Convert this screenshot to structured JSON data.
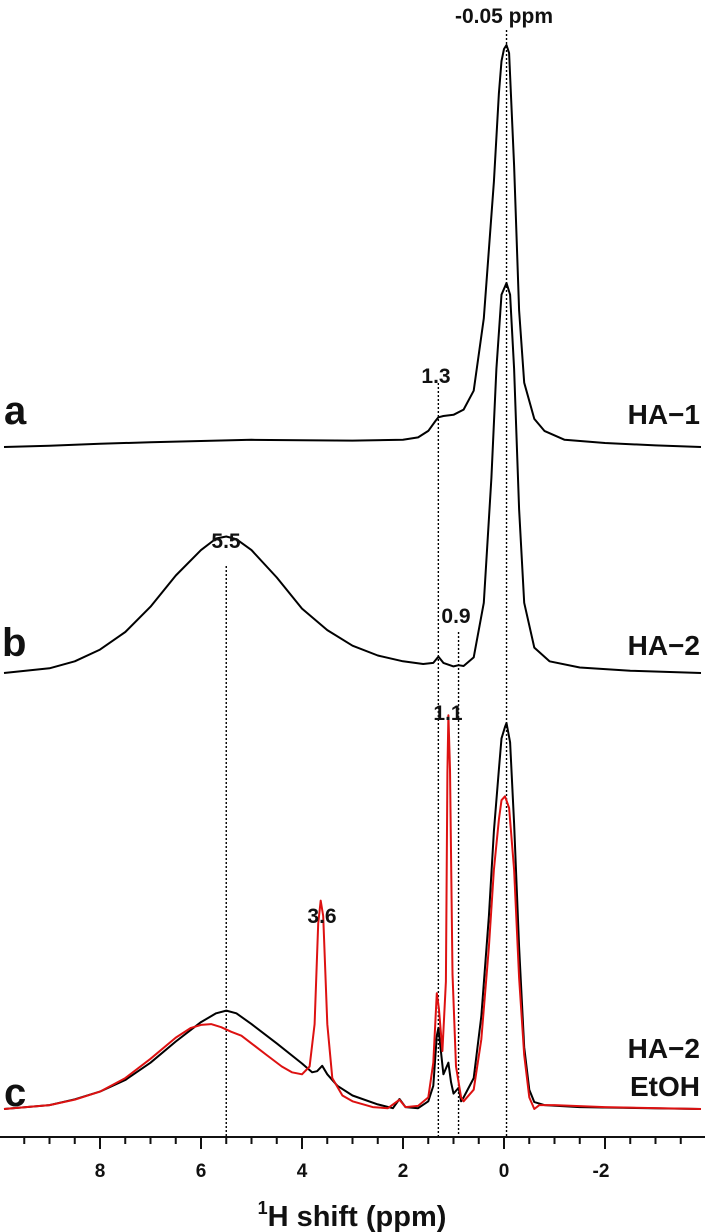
{
  "chart_data": {
    "type": "line",
    "title": "",
    "xlabel": {
      "superscript": "1",
      "text": "H shift (ppm)"
    },
    "ylabel": "",
    "x_reversed": true,
    "xlim": [
      9.9,
      -3.9
    ],
    "xticks": [
      8,
      6,
      4,
      2,
      0,
      -2
    ],
    "xtick_labels": [
      "8",
      "6",
      "4",
      "2",
      "0",
      "-2"
    ],
    "minor_tick_step": 0.5,
    "grid": false,
    "legend": "none",
    "colors": {
      "hydrogel": "#000000",
      "ethanol": "#dd1111",
      "guide": "#000000"
    },
    "panels": [
      {
        "letter": "a",
        "label_lines": [
          "HA−1"
        ],
        "series": [
          {
            "color": "#000000",
            "points": [
              [
                9.9,
                0.0
              ],
              [
                9.0,
                0.003
              ],
              [
                8.0,
                0.008
              ],
              [
                7.0,
                0.012
              ],
              [
                6.0,
                0.015
              ],
              [
                5.0,
                0.018
              ],
              [
                4.0,
                0.017
              ],
              [
                3.0,
                0.016
              ],
              [
                2.0,
                0.018
              ],
              [
                1.7,
                0.024
              ],
              [
                1.5,
                0.04
              ],
              [
                1.35,
                0.066
              ],
              [
                1.3,
                0.074
              ],
              [
                1.2,
                0.077
              ],
              [
                1.0,
                0.08
              ],
              [
                0.8,
                0.093
              ],
              [
                0.6,
                0.14
              ],
              [
                0.4,
                0.32
              ],
              [
                0.2,
                0.66
              ],
              [
                0.1,
                0.88
              ],
              [
                0.05,
                0.96
              ],
              [
                0.0,
                0.99
              ],
              [
                -0.05,
                1.0
              ],
              [
                -0.1,
                0.98
              ],
              [
                -0.2,
                0.7
              ],
              [
                -0.3,
                0.34
              ],
              [
                -0.4,
                0.16
              ],
              [
                -0.6,
                0.07
              ],
              [
                -0.8,
                0.04
              ],
              [
                -1.2,
                0.018
              ],
              [
                -2.0,
                0.01
              ],
              [
                -3.0,
                0.004
              ],
              [
                -3.9,
                0.0
              ]
            ]
          }
        ],
        "annotations": [
          "1.3",
          "-0.05 ppm"
        ]
      },
      {
        "letter": "b",
        "label_lines": [
          "HA−2"
        ],
        "series": [
          {
            "color": "#000000",
            "points": [
              [
                9.9,
                0.0
              ],
              [
                9.0,
                0.012
              ],
              [
                8.5,
                0.03
              ],
              [
                8.0,
                0.06
              ],
              [
                7.5,
                0.105
              ],
              [
                7.0,
                0.17
              ],
              [
                6.5,
                0.25
              ],
              [
                6.0,
                0.315
              ],
              [
                5.7,
                0.345
              ],
              [
                5.5,
                0.35
              ],
              [
                5.3,
                0.343
              ],
              [
                5.0,
                0.315
              ],
              [
                4.5,
                0.245
              ],
              [
                4.0,
                0.165
              ],
              [
                3.5,
                0.11
              ],
              [
                3.0,
                0.07
              ],
              [
                2.5,
                0.045
              ],
              [
                2.0,
                0.03
              ],
              [
                1.6,
                0.023
              ],
              [
                1.4,
                0.026
              ],
              [
                1.3,
                0.042
              ],
              [
                1.2,
                0.026
              ],
              [
                1.0,
                0.017
              ],
              [
                0.9,
                0.02
              ],
              [
                0.8,
                0.018
              ],
              [
                0.6,
                0.04
              ],
              [
                0.4,
                0.18
              ],
              [
                0.25,
                0.5
              ],
              [
                0.15,
                0.78
              ],
              [
                0.05,
                0.97
              ],
              [
                -0.05,
                1.0
              ],
              [
                -0.12,
                0.97
              ],
              [
                -0.2,
                0.78
              ],
              [
                -0.3,
                0.42
              ],
              [
                -0.4,
                0.18
              ],
              [
                -0.6,
                0.065
              ],
              [
                -0.9,
                0.03
              ],
              [
                -1.5,
                0.014
              ],
              [
                -2.5,
                0.006
              ],
              [
                -3.9,
                0.0
              ]
            ]
          }
        ],
        "annotations": [
          "5.5",
          "0.9"
        ]
      },
      {
        "letter": "c",
        "label_lines": [
          "HA−2",
          "EtOH"
        ],
        "series": [
          {
            "color": "#000000",
            "points": [
              [
                9.9,
                0.0
              ],
              [
                9.0,
                0.01
              ],
              [
                8.5,
                0.025
              ],
              [
                8.0,
                0.045
              ],
              [
                7.5,
                0.075
              ],
              [
                7.0,
                0.12
              ],
              [
                6.5,
                0.175
              ],
              [
                6.0,
                0.225
              ],
              [
                5.7,
                0.248
              ],
              [
                5.5,
                0.255
              ],
              [
                5.3,
                0.248
              ],
              [
                5.0,
                0.22
              ],
              [
                4.5,
                0.17
              ],
              [
                4.0,
                0.118
              ],
              [
                3.8,
                0.095
              ],
              [
                3.7,
                0.098
              ],
              [
                3.6,
                0.112
              ],
              [
                3.5,
                0.09
              ],
              [
                3.3,
                0.06
              ],
              [
                3.0,
                0.035
              ],
              [
                2.5,
                0.012
              ],
              [
                2.2,
                0.002
              ],
              [
                2.07,
                0.026
              ],
              [
                1.95,
                0.005
              ],
              [
                1.7,
                0.002
              ],
              [
                1.5,
                0.02
              ],
              [
                1.4,
                0.06
              ],
              [
                1.33,
                0.19
              ],
              [
                1.3,
                0.21
              ],
              [
                1.25,
                0.15
              ],
              [
                1.2,
                0.09
              ],
              [
                1.1,
                0.12
              ],
              [
                1.05,
                0.07
              ],
              [
                1.0,
                0.04
              ],
              [
                0.9,
                0.055
              ],
              [
                0.85,
                0.02
              ],
              [
                0.8,
                0.03
              ],
              [
                0.6,
                0.08
              ],
              [
                0.45,
                0.24
              ],
              [
                0.3,
                0.5
              ],
              [
                0.2,
                0.72
              ],
              [
                0.1,
                0.88
              ],
              [
                0.05,
                0.96
              ],
              [
                -0.02,
                0.99
              ],
              [
                -0.05,
                1.0
              ],
              [
                -0.12,
                0.95
              ],
              [
                -0.2,
                0.74
              ],
              [
                -0.3,
                0.42
              ],
              [
                -0.4,
                0.16
              ],
              [
                -0.5,
                0.05
              ],
              [
                -0.6,
                0.018
              ],
              [
                -0.8,
                0.01
              ],
              [
                -1.5,
                0.005
              ],
              [
                -3.9,
                0.0
              ]
            ]
          },
          {
            "color": "#dd1111",
            "points": [
              [
                9.9,
                0.0
              ],
              [
                9.0,
                0.01
              ],
              [
                8.5,
                0.024
              ],
              [
                8.0,
                0.045
              ],
              [
                7.5,
                0.08
              ],
              [
                7.0,
                0.13
              ],
              [
                6.5,
                0.185
              ],
              [
                6.2,
                0.21
              ],
              [
                6.0,
                0.218
              ],
              [
                5.8,
                0.22
              ],
              [
                5.6,
                0.212
              ],
              [
                5.4,
                0.2
              ],
              [
                5.2,
                0.19
              ],
              [
                5.0,
                0.17
              ],
              [
                4.7,
                0.14
              ],
              [
                4.4,
                0.11
              ],
              [
                4.2,
                0.095
              ],
              [
                4.0,
                0.09
              ],
              [
                3.85,
                0.11
              ],
              [
                3.75,
                0.22
              ],
              [
                3.68,
                0.48
              ],
              [
                3.63,
                0.54
              ],
              [
                3.58,
                0.5
              ],
              [
                3.5,
                0.22
              ],
              [
                3.4,
                0.08
              ],
              [
                3.2,
                0.035
              ],
              [
                3.0,
                0.02
              ],
              [
                2.6,
                0.005
              ],
              [
                2.3,
                0.002
              ],
              [
                2.07,
                0.024
              ],
              [
                1.95,
                0.005
              ],
              [
                1.7,
                0.008
              ],
              [
                1.5,
                0.03
              ],
              [
                1.4,
                0.12
              ],
              [
                1.33,
                0.3
              ],
              [
                1.29,
                0.26
              ],
              [
                1.22,
                0.15
              ],
              [
                1.15,
                0.33
              ],
              [
                1.12,
                0.87
              ],
              [
                1.1,
                1.02
              ],
              [
                1.07,
                0.88
              ],
              [
                1.02,
                0.35
              ],
              [
                0.95,
                0.11
              ],
              [
                0.85,
                0.03
              ],
              [
                0.8,
                0.02
              ],
              [
                0.6,
                0.05
              ],
              [
                0.45,
                0.18
              ],
              [
                0.3,
                0.42
              ],
              [
                0.2,
                0.62
              ],
              [
                0.1,
                0.75
              ],
              [
                0.05,
                0.8
              ],
              [
                -0.02,
                0.81
              ],
              [
                -0.1,
                0.78
              ],
              [
                -0.2,
                0.62
              ],
              [
                -0.3,
                0.34
              ],
              [
                -0.4,
                0.14
              ],
              [
                -0.5,
                0.03
              ],
              [
                -0.6,
                0.0
              ],
              [
                -0.7,
                0.01
              ],
              [
                -1.0,
                0.01
              ],
              [
                -2.0,
                0.005
              ],
              [
                -3.9,
                0.0
              ]
            ]
          }
        ],
        "annotations": [
          "3.6",
          "1.1"
        ]
      }
    ],
    "guide_lines_ppm": [
      5.5,
      1.3,
      0.9,
      -0.05
    ]
  }
}
